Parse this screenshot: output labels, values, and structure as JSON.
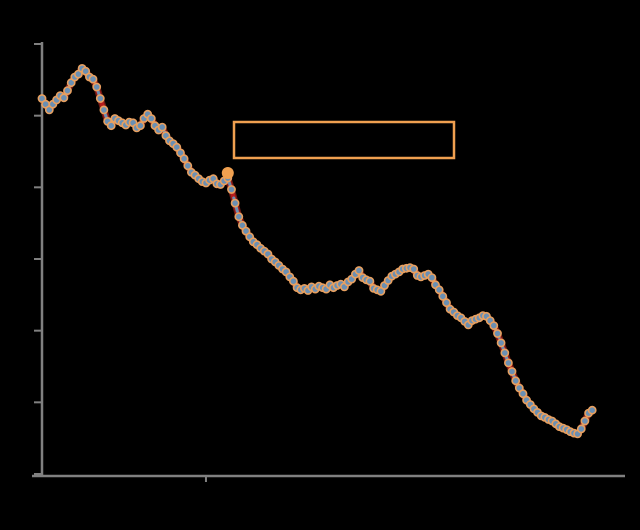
{
  "chart_data": {
    "type": "line",
    "title": "",
    "xlabel": "",
    "ylabel": "",
    "xlim": [
      0,
      160
    ],
    "ylim": [
      0,
      60
    ],
    "x_ticks": [
      45
    ],
    "y_ticks": [
      0,
      10,
      20,
      30,
      40,
      50,
      60
    ],
    "tick_labels_visible": false,
    "grid": false,
    "legend": "none",
    "colors": {
      "background": "#000000",
      "axis": "#808080",
      "series_lines": [
        "#6b1a14",
        "#b71c1c",
        "#6a8fb3"
      ],
      "marker_fill": "#6a8fb3",
      "marker_edge": "#e8a060",
      "highlight_point": "#f0a050",
      "annotation_box": "#f0a050"
    },
    "highlight": {
      "x": 51,
      "y": 42.0
    },
    "annotation": {
      "text": ""
    },
    "series": [
      {
        "values": [
          [
            0,
            52.4
          ],
          [
            1,
            51.6
          ],
          [
            2,
            50.8
          ],
          [
            3,
            51.6
          ],
          [
            4,
            52.2
          ],
          [
            5,
            52.8
          ],
          [
            6,
            52.5
          ],
          [
            7,
            53.5
          ],
          [
            8,
            54.6
          ],
          [
            9,
            55.4
          ],
          [
            10,
            55.8
          ],
          [
            11,
            56.6
          ],
          [
            12,
            56.2
          ],
          [
            13,
            55.4
          ],
          [
            14,
            55.1
          ],
          [
            15,
            54.0
          ],
          [
            16,
            52.4
          ],
          [
            17,
            50.8
          ],
          [
            18,
            49.2
          ],
          [
            19,
            48.6
          ],
          [
            20,
            49.6
          ],
          [
            21,
            49.3
          ],
          [
            22,
            49.0
          ],
          [
            23,
            48.7
          ],
          [
            24,
            49.1
          ],
          [
            25,
            49.0
          ],
          [
            26,
            48.3
          ],
          [
            27,
            48.6
          ],
          [
            28,
            49.6
          ],
          [
            29,
            50.2
          ],
          [
            30,
            49.6
          ],
          [
            31,
            48.6
          ],
          [
            32,
            48.0
          ],
          [
            33,
            48.4
          ],
          [
            34,
            47.2
          ],
          [
            35,
            46.5
          ],
          [
            36,
            46.1
          ],
          [
            37,
            45.6
          ],
          [
            38,
            44.8
          ],
          [
            39,
            44.0
          ],
          [
            40,
            43.0
          ],
          [
            41,
            42.1
          ],
          [
            42,
            41.7
          ],
          [
            43,
            41.2
          ],
          [
            44,
            40.8
          ],
          [
            45,
            40.6
          ],
          [
            46,
            41.0
          ],
          [
            47,
            41.2
          ],
          [
            48,
            40.5
          ],
          [
            49,
            40.4
          ],
          [
            50,
            40.9
          ],
          [
            51,
            41.3
          ],
          [
            52,
            39.7
          ],
          [
            53,
            37.8
          ],
          [
            54,
            35.9
          ],
          [
            55,
            34.7
          ],
          [
            56,
            33.9
          ],
          [
            57,
            33.1
          ],
          [
            58,
            32.4
          ],
          [
            59,
            32.0
          ],
          [
            60,
            31.5
          ],
          [
            61,
            31.1
          ],
          [
            62,
            30.7
          ],
          [
            63,
            30.0
          ],
          [
            64,
            29.6
          ],
          [
            65,
            29.1
          ],
          [
            66,
            28.6
          ],
          [
            67,
            28.2
          ],
          [
            68,
            27.5
          ],
          [
            69,
            26.9
          ],
          [
            70,
            26.0
          ],
          [
            71,
            25.7
          ],
          [
            72,
            25.9
          ],
          [
            73,
            25.6
          ],
          [
            74,
            26.1
          ],
          [
            75,
            25.8
          ],
          [
            76,
            26.2
          ],
          [
            77,
            26.0
          ],
          [
            78,
            25.8
          ],
          [
            79,
            26.4
          ],
          [
            80,
            26.0
          ],
          [
            81,
            26.3
          ],
          [
            82,
            26.5
          ],
          [
            83,
            26.1
          ],
          [
            84,
            26.8
          ],
          [
            85,
            27.2
          ],
          [
            86,
            27.9
          ],
          [
            87,
            28.4
          ],
          [
            88,
            27.4
          ],
          [
            89,
            27.1
          ],
          [
            90,
            26.9
          ],
          [
            91,
            25.9
          ],
          [
            92,
            25.7
          ],
          [
            93,
            25.5
          ],
          [
            94,
            26.3
          ],
          [
            95,
            27.0
          ],
          [
            96,
            27.6
          ],
          [
            97,
            27.9
          ],
          [
            98,
            28.2
          ],
          [
            99,
            28.6
          ],
          [
            100,
            28.7
          ],
          [
            101,
            28.8
          ],
          [
            102,
            28.6
          ],
          [
            103,
            27.7
          ],
          [
            104,
            27.5
          ],
          [
            105,
            27.7
          ],
          [
            106,
            27.9
          ],
          [
            107,
            27.4
          ],
          [
            108,
            26.4
          ],
          [
            109,
            25.7
          ],
          [
            110,
            24.8
          ],
          [
            111,
            23.9
          ],
          [
            112,
            23.0
          ],
          [
            113,
            22.6
          ],
          [
            114,
            22.1
          ],
          [
            115,
            21.8
          ],
          [
            116,
            21.3
          ],
          [
            117,
            20.8
          ],
          [
            118,
            21.4
          ],
          [
            119,
            21.6
          ],
          [
            120,
            21.8
          ],
          [
            121,
            22.1
          ],
          [
            122,
            22.0
          ],
          [
            123,
            21.4
          ],
          [
            124,
            20.7
          ],
          [
            125,
            19.6
          ],
          [
            126,
            18.3
          ],
          [
            127,
            16.9
          ],
          [
            128,
            15.5
          ],
          [
            129,
            14.3
          ],
          [
            130,
            13.0
          ],
          [
            131,
            12.0
          ],
          [
            132,
            11.2
          ],
          [
            133,
            10.3
          ],
          [
            134,
            9.7
          ],
          [
            135,
            9.1
          ],
          [
            136,
            8.6
          ],
          [
            137,
            8.1
          ],
          [
            138,
            7.9
          ],
          [
            139,
            7.6
          ],
          [
            140,
            7.4
          ],
          [
            141,
            7.0
          ],
          [
            142,
            6.6
          ],
          [
            143,
            6.4
          ],
          [
            144,
            6.2
          ],
          [
            145,
            5.9
          ],
          [
            146,
            5.7
          ],
          [
            147,
            5.6
          ],
          [
            148,
            6.3
          ],
          [
            149,
            7.4
          ],
          [
            150,
            8.5
          ],
          [
            151,
            8.9
          ]
        ]
      }
    ]
  }
}
